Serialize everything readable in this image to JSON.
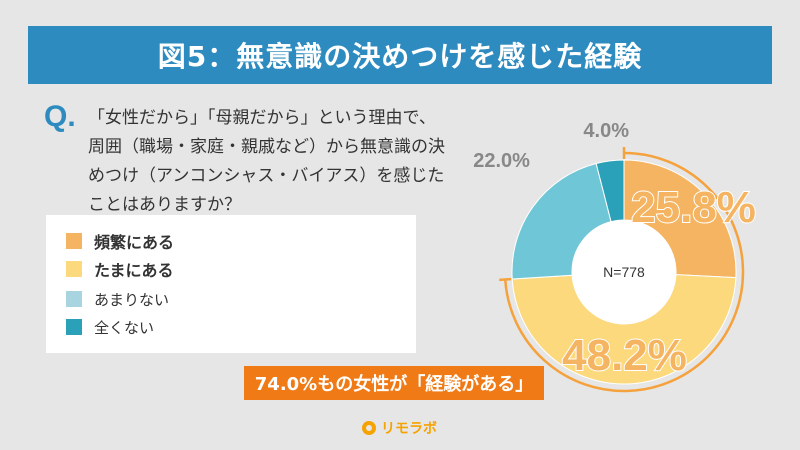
{
  "title": "図5：無意識の決めつけを感じた経験",
  "question": {
    "mark": "Q.",
    "lines": [
      "「女性だから」「母親だから」という理由で、",
      "周囲（職場・家庭・親戚など）から無意識の決",
      "めつけ（アンコンシャス・バイアス）を感じた",
      "ことはありますか？"
    ]
  },
  "legend": [
    {
      "label": "頻繁にある",
      "color": "#f4b461",
      "bold": true
    },
    {
      "label": "たまにある",
      "color": "#fbd97c",
      "bold": true
    },
    {
      "label": "あまりない",
      "color": "#a7d4de",
      "bold": false
    },
    {
      "label": "全くない",
      "color": "#2aa0b9",
      "bold": false
    }
  ],
  "chart_data": {
    "type": "pie",
    "variant": "donut",
    "center_label": "N=778",
    "slices": [
      {
        "label": "頻繁にある",
        "value": 25.8,
        "display": "25.8%",
        "color": "#f4b461",
        "highlight": true
      },
      {
        "label": "たまにある",
        "value": 48.2,
        "display": "48.2%",
        "color": "#fbd97c",
        "highlight": true
      },
      {
        "label": "あまりない",
        "value": 22.0,
        "display": "22.0%",
        "color": "#6fc6d6",
        "highlight": false
      },
      {
        "label": "全くない",
        "value": 4.0,
        "display": "4.0%",
        "color": "#2aa0b9",
        "highlight": false
      }
    ],
    "start": "12 o'clock",
    "direction": "clockwise",
    "highlight_ring_color": "#f5a23c",
    "label_highlight_color": "#f4b461",
    "label_outline_color": "#f07a16",
    "label_muted_color": "#888888"
  },
  "callout": {
    "text": "74.0%もの女性が「経験がある」"
  },
  "logo": {
    "text": "リモラボ"
  }
}
